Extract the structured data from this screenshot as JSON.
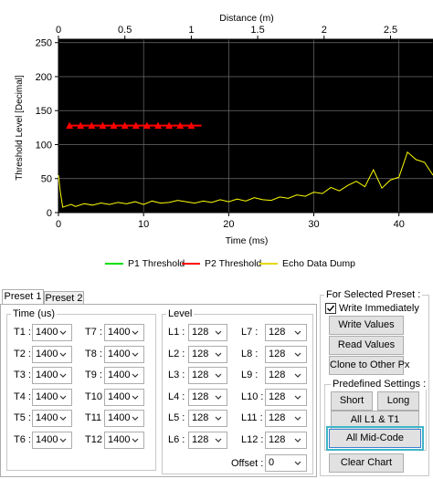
{
  "chart_data": {
    "type": "line",
    "title": "",
    "xlabel": "Time (ms)",
    "ylabel": "Threshold Level [Decimal]",
    "x2label": "Distance (m)",
    "xlim": [
      0,
      44
    ],
    "ylim": [
      0,
      255
    ],
    "x2lim": [
      0,
      2.82
    ],
    "x_ticks": [
      0,
      10,
      20,
      30,
      40
    ],
    "y_ticks": [
      0,
      50,
      100,
      150,
      200,
      250
    ],
    "x2_ticks": [
      0,
      0.5,
      1,
      1.5,
      2,
      2.5
    ],
    "x_tick_labels": [
      "0",
      "10",
      "20",
      "30",
      "40"
    ],
    "y_tick_labels": [
      "0",
      "50",
      "100",
      "150",
      "200",
      "250"
    ],
    "x2_tick_labels": [
      "0",
      "0.5",
      "1",
      "1.5",
      "2",
      "2.5"
    ],
    "grid": true,
    "background": "#000000",
    "legend_position": "bottom",
    "series": [
      {
        "name": "P1 Threshold",
        "color": "#00e000",
        "x": [],
        "y": []
      },
      {
        "name": "P2 Threshold",
        "color": "#ff0000",
        "marker": "triangle",
        "x": [
          1.3,
          2.6,
          3.9,
          5.2,
          6.5,
          7.8,
          9.1,
          10.4,
          11.7,
          13.0,
          14.3,
          15.6,
          16.8
        ],
        "y": [
          128,
          128,
          128,
          128,
          128,
          128,
          128,
          128,
          128,
          128,
          128,
          128,
          128
        ],
        "marker_count": 12
      },
      {
        "name": "Echo Data Dump",
        "color": "#ffff00",
        "x": [
          0,
          0.2,
          0.5,
          1,
          1.5,
          2,
          3,
          4,
          5,
          6,
          7,
          8,
          9,
          10,
          11,
          12,
          13,
          14,
          15,
          16,
          17,
          18,
          19,
          20,
          21,
          22,
          23,
          24,
          25,
          26,
          27,
          28,
          29,
          30,
          31,
          32,
          33,
          34,
          35,
          36,
          37,
          38,
          39,
          40,
          41,
          42,
          43,
          44
        ],
        "y": [
          55,
          32,
          8,
          10,
          12,
          9,
          13,
          11,
          14,
          12,
          15,
          13,
          16,
          12,
          17,
          14,
          15,
          18,
          16,
          14,
          17,
          15,
          19,
          16,
          20,
          17,
          22,
          19,
          18,
          23,
          21,
          26,
          24,
          30,
          28,
          37,
          32,
          40,
          46,
          38,
          63,
          36,
          48,
          52,
          89,
          78,
          74,
          55
        ]
      }
    ]
  },
  "tabs": [
    {
      "label": "Preset 1",
      "active": true
    },
    {
      "label": "Preset 2",
      "active": false
    }
  ],
  "time_group": {
    "title": "Time (us)",
    "left": [
      {
        "label": "T1 :",
        "value": "1400"
      },
      {
        "label": "T2 :",
        "value": "1400"
      },
      {
        "label": "T3 :",
        "value": "1400"
      },
      {
        "label": "T4 :",
        "value": "1400"
      },
      {
        "label": "T5 :",
        "value": "1400"
      },
      {
        "label": "T6 :",
        "value": "1400"
      }
    ],
    "right": [
      {
        "label": "T7 :",
        "value": "1400"
      },
      {
        "label": "T8 :",
        "value": "1400"
      },
      {
        "label": "T9 :",
        "value": "1400"
      },
      {
        "label": "T10 :",
        "value": "1400"
      },
      {
        "label": "T11 :",
        "value": "1400"
      },
      {
        "label": "T12 :",
        "value": "1400"
      }
    ]
  },
  "level_group": {
    "title": "Level",
    "left": [
      {
        "label": "L1 :",
        "value": "128"
      },
      {
        "label": "L2 :",
        "value": "128"
      },
      {
        "label": "L3 :",
        "value": "128"
      },
      {
        "label": "L4 :",
        "value": "128"
      },
      {
        "label": "L5 :",
        "value": "128"
      },
      {
        "label": "L6 :",
        "value": "128"
      }
    ],
    "right": [
      {
        "label": "L7 :",
        "value": "128"
      },
      {
        "label": "L8 :",
        "value": "128"
      },
      {
        "label": "L9 :",
        "value": "128"
      },
      {
        "label": "L10 :",
        "value": "128"
      },
      {
        "label": "L11 :",
        "value": "128"
      },
      {
        "label": "L12 :",
        "value": "128"
      }
    ],
    "offset": {
      "label": "Offset :",
      "value": "0"
    }
  },
  "selected_preset": {
    "title": "For Selected Preset :",
    "write_immediately": {
      "label": "Write Immediately",
      "checked": true
    },
    "write_values": "Write Values",
    "read_values": "Read Values",
    "clone": "Clone to Other Px",
    "predefined": {
      "title": "Predefined Settings :",
      "short": "Short",
      "long": "Long",
      "all_l1_t1": "All L1 & T1",
      "all_mid_code": "All Mid-Code"
    },
    "clear_chart": "Clear Chart"
  }
}
